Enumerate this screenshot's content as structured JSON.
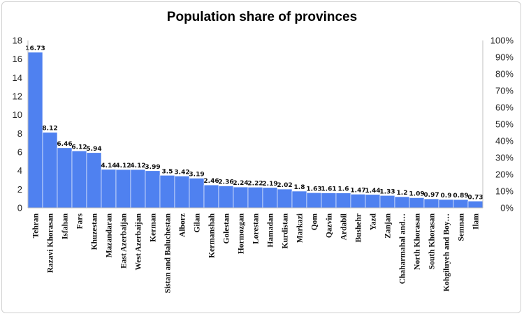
{
  "chart_data": {
    "type": "bar",
    "title": "Population share of provinces",
    "xlabel": "",
    "ylabel": "",
    "ylim": [
      0,
      18
    ],
    "yticks": [
      "0",
      "2",
      "4",
      "6",
      "8",
      "10",
      "12",
      "14",
      "16",
      "18"
    ],
    "y2ticks": [
      "0%",
      "10%",
      "20%",
      "30%",
      "40%",
      "50%",
      "60%",
      "70%",
      "80%",
      "90%",
      "100%"
    ],
    "grid": false,
    "bar_color": "#4f81f0",
    "categories": [
      "Tehran",
      "Razavi Khorasan",
      "Isfahan",
      "Fars",
      "Khuzestan",
      "Mazandaran",
      "East Azerbaijan",
      "West Azerbaijan",
      "Kerman",
      "Sistan and Baluchestan",
      "Alborz",
      "Gilan",
      "Kermanshah",
      "Golestan",
      "Hormozgan",
      "Lorestan",
      "Hamadan",
      "Kurdistan",
      "Markazi",
      "Qom",
      "Qazvin",
      "Ardabil",
      "Bushehr",
      "Yazd",
      "Zanjan",
      "Chaharmahal and…",
      "North Khorasan",
      "South Khorasan",
      "Kohgiluyeh and Boy…",
      "Semnan",
      "Ilam"
    ],
    "values": [
      16.73,
      8.12,
      6.46,
      6.12,
      5.94,
      4.14,
      4.12,
      4.12,
      3.99,
      3.5,
      3.42,
      3.19,
      2.46,
      2.36,
      2.24,
      2.22,
      2.19,
      2.02,
      1.8,
      1.63,
      1.61,
      1.6,
      1.47,
      1.44,
      1.33,
      1.2,
      1.09,
      0.97,
      0.9,
      0.89,
      0.73
    ]
  }
}
